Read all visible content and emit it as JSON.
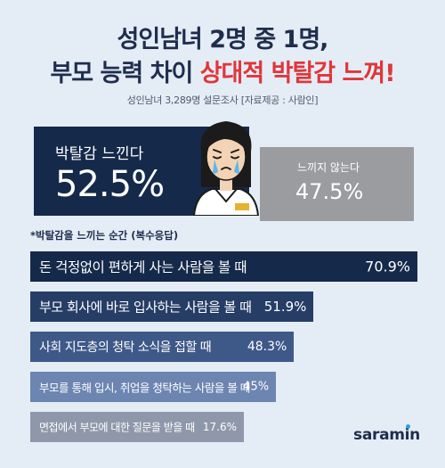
{
  "header": {
    "title_line1": "성인남녀 2명 중 1명,",
    "title_line2_plain": "부모 능력 차이 ",
    "title_line2_accent": "상대적 박탈감 느껴!",
    "source": "성인남녀 3,289명 설문조사 [자료제공 : 사람인]"
  },
  "summary": {
    "feel": {
      "label": "박탈감 느낀다",
      "value": "52.5%"
    },
    "not_feel": {
      "label": "느끼지 않는다",
      "value": "47.5%"
    }
  },
  "note": "*박탈감을 느끼는 순간 (복수응답)",
  "logo": "saramin",
  "colors": {
    "background": "#e4edf6",
    "navy": "#15294a",
    "gray": "#9b9ca0",
    "accent_red": "#e0363a",
    "bars": [
      "#15294a",
      "#263d66",
      "#3e5888",
      "#6c85b1",
      "#8f98aa"
    ]
  },
  "chart_data": [
    {
      "type": "pie",
      "categories": [
        "박탈감 느낀다",
        "느끼지 않는다"
      ],
      "values": [
        52.5,
        47.5
      ]
    },
    {
      "type": "bar",
      "orientation": "horizontal",
      "categories": [
        "돈 걱정없이 편하게 사는 사람을 볼 때",
        "부모 회사에 바로 입사하는 사람을 볼 때",
        "사회 지도층의 청탁 소식을 접할 때",
        "부모를 통해 입시, 취업을 청탁하는 사람을 볼 때",
        "면접에서 부모에 대한 질문을 받을 때"
      ],
      "values": [
        70.9,
        51.9,
        48.3,
        45,
        17.6
      ],
      "value_labels": [
        "70.9%",
        "51.9%",
        "48.3%",
        "45%",
        "17.6%"
      ],
      "unit": "%"
    }
  ]
}
